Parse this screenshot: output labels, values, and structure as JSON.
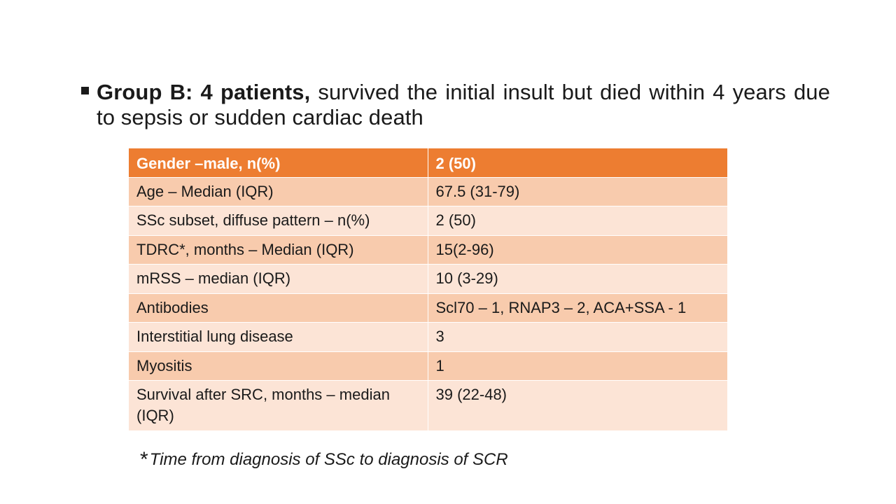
{
  "bullet": {
    "bold": "Group B: 4 patients,",
    "rest": " survived the initial insult but died within 4 years due to sepsis or sudden cardiac death"
  },
  "table": {
    "header": [
      "Gender –male, n(%)",
      "2 (50)"
    ],
    "rows": [
      [
        "Age – Median (IQR)",
        "67.5 (31-79)"
      ],
      [
        "SSc subset, diffuse pattern – n(%)",
        "2 (50)"
      ],
      [
        "TDRC*, months – Median (IQR)",
        "15(2-96)"
      ],
      [
        "mRSS – median (IQR)",
        "10 (3-29)"
      ],
      [
        "Antibodies",
        "Scl70 – 1, RNAP3 – 2, ACA+SSA - 1"
      ],
      [
        "Interstitial lung disease",
        "3"
      ],
      [
        "Myositis",
        "1"
      ],
      [
        "Survival after SRC, months – median (IQR)",
        "39 (22-48)"
      ]
    ]
  },
  "footnote": {
    "star": "*",
    "text": "Time from diagnosis of SSc to diagnosis of SCR"
  },
  "colors": {
    "header_bg": "#ed7d31",
    "row_dark": "#f8cbad",
    "row_light": "#fce4d6"
  }
}
